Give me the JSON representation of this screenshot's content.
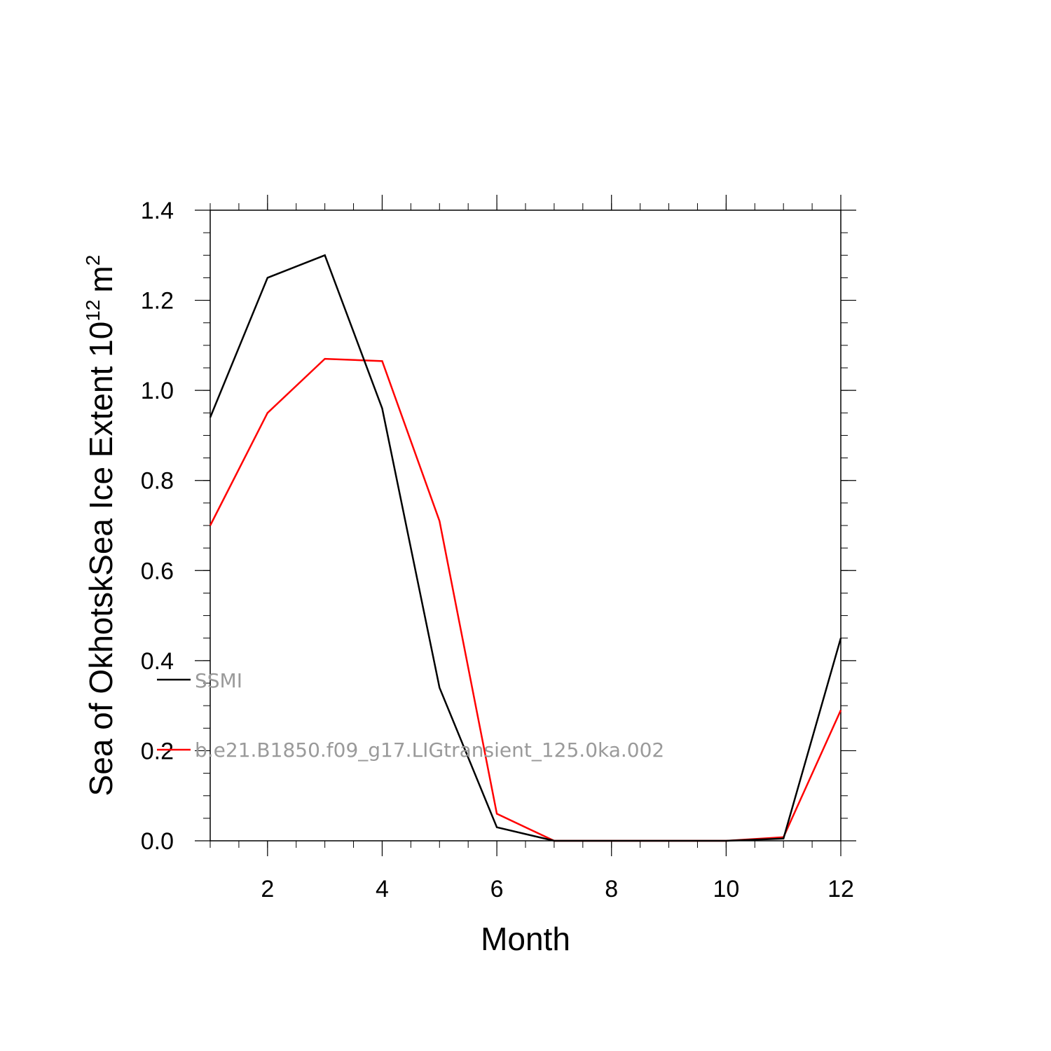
{
  "chart_data": {
    "type": "line",
    "x": [
      1,
      2,
      3,
      4,
      5,
      6,
      7,
      8,
      9,
      10,
      11,
      12
    ],
    "series": [
      {
        "name": "SSMI",
        "color": "#000000",
        "values": [
          0.94,
          1.25,
          1.3,
          0.96,
          0.34,
          0.03,
          0.0,
          0.0,
          0.0,
          0.0,
          0.005,
          0.45
        ]
      },
      {
        "name": "b.e21.B1850.f09_g17.LIGtransient_125.0ka.002",
        "color": "#ff0000",
        "values": [
          0.7,
          0.95,
          1.07,
          1.065,
          0.71,
          0.06,
          0.0,
          0.0,
          0.0,
          0.0,
          0.008,
          0.29
        ]
      }
    ],
    "xlabel": "Month",
    "ylabel": "Sea of OkhotskSea Ice Extent 10",
    "ylabel_sup": "12",
    "ylabel_unit": "m",
    "ylabel_unit_sup": "2",
    "xlim": [
      1,
      12
    ],
    "ylim": [
      0,
      1.4
    ],
    "x_ticks": [
      "2",
      "4",
      "6",
      "8",
      "10",
      "12"
    ],
    "y_ticks": [
      "0.0",
      "0.2",
      "0.4",
      "0.6",
      "0.8",
      "1.0",
      "1.2",
      "1.4"
    ],
    "grid": false,
    "legend_position": "left-inside"
  }
}
